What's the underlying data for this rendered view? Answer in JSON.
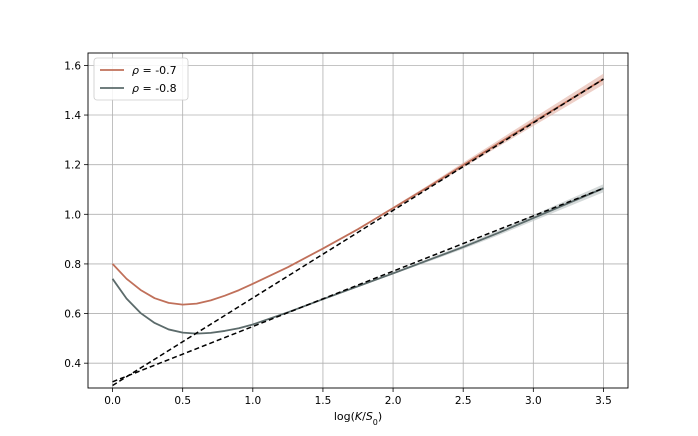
{
  "chart_data": {
    "type": "line",
    "title": "",
    "xlabel": "log(K/S0)",
    "ylabel": "",
    "xlim": [
      -0.175,
      3.675
    ],
    "ylim": [
      0.3,
      1.65
    ],
    "xticks": [
      0.0,
      0.5,
      1.0,
      1.5,
      2.0,
      2.5,
      3.0,
      3.5
    ],
    "xtick_labels": [
      "0.0",
      "0.5",
      "1.0",
      "1.5",
      "2.0",
      "2.5",
      "3.0",
      "3.5"
    ],
    "yticks": [
      0.4,
      0.6,
      0.8,
      1.0,
      1.2,
      1.4,
      1.6
    ],
    "ytick_labels": [
      "0.4",
      "0.6",
      "0.8",
      "1.0",
      "1.2",
      "1.4",
      "1.6"
    ],
    "grid": true,
    "legend_position": "top-left",
    "series": [
      {
        "name": "ρ = -0.7",
        "color": "#c0705a",
        "band_color": "#e3b1a4",
        "x": [
          0.0,
          0.1,
          0.2,
          0.3,
          0.4,
          0.5,
          0.6,
          0.7,
          0.8,
          0.9,
          1.0,
          1.25,
          1.5,
          1.75,
          2.0,
          2.25,
          2.5,
          2.75,
          3.0,
          3.25,
          3.5
        ],
        "y": [
          0.8,
          0.74,
          0.695,
          0.662,
          0.643,
          0.636,
          0.64,
          0.653,
          0.672,
          0.694,
          0.72,
          0.787,
          0.862,
          0.94,
          1.025,
          1.11,
          1.198,
          1.285,
          1.372,
          1.458,
          1.545
        ],
        "band": [
          0.0,
          0.0,
          0.0,
          0.0,
          0.0,
          0.0,
          0.0,
          0.0,
          0.0,
          0.0,
          0.0,
          0.001,
          0.002,
          0.003,
          0.005,
          0.007,
          0.01,
          0.013,
          0.016,
          0.019,
          0.022
        ]
      },
      {
        "name": "ρ = -0.8",
        "color": "#5c6b6b",
        "band_color": "#b9c1c1",
        "x": [
          0.0,
          0.1,
          0.2,
          0.3,
          0.4,
          0.5,
          0.6,
          0.7,
          0.8,
          0.9,
          1.0,
          1.25,
          1.5,
          1.75,
          2.0,
          2.25,
          2.5,
          2.75,
          3.0,
          3.25,
          3.5
        ],
        "y": [
          0.74,
          0.66,
          0.602,
          0.562,
          0.536,
          0.523,
          0.519,
          0.522,
          0.53,
          0.541,
          0.556,
          0.605,
          0.658,
          0.71,
          0.762,
          0.815,
          0.868,
          0.925,
          0.985,
          1.045,
          1.105
        ],
        "band": [
          0.0,
          0.0,
          0.0,
          0.0,
          0.0,
          0.0,
          0.0,
          0.0,
          0.0,
          0.0,
          0.0,
          0.001,
          0.002,
          0.003,
          0.004,
          0.006,
          0.008,
          0.01,
          0.012,
          0.014,
          0.016
        ]
      }
    ],
    "asymptotes": [
      {
        "x": [
          0.0,
          3.5
        ],
        "y": [
          0.31,
          1.545
        ],
        "color": "#000000"
      },
      {
        "x": [
          0.0,
          3.5
        ],
        "y": [
          0.325,
          1.105
        ],
        "color": "#000000"
      }
    ]
  }
}
